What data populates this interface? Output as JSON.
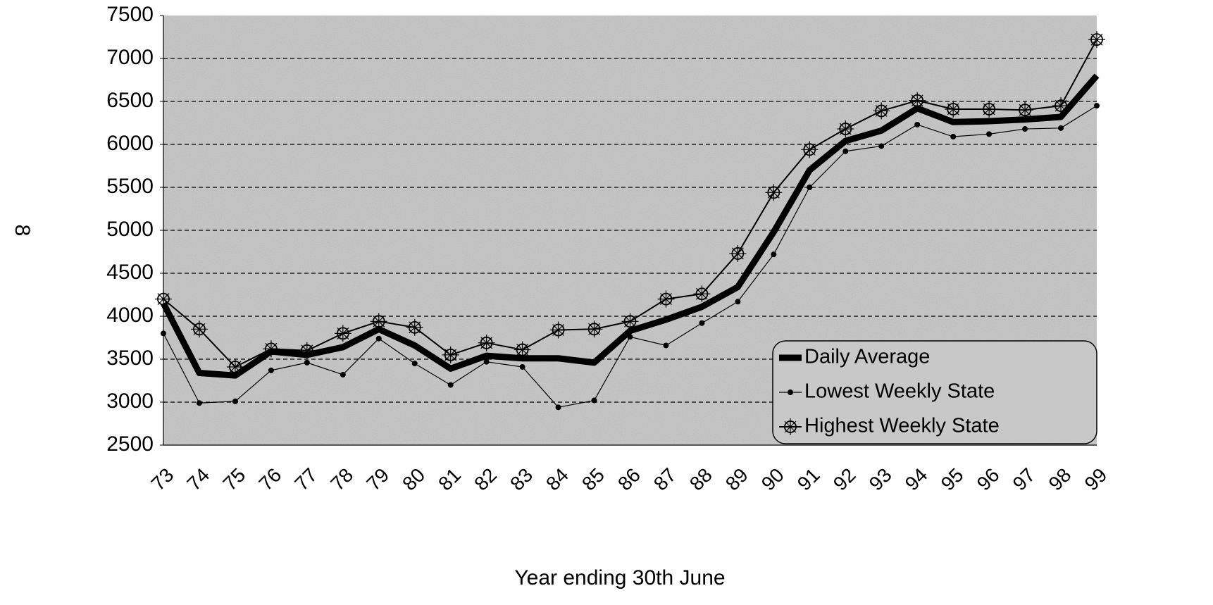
{
  "chart_data": {
    "type": "line",
    "ylabel": "8",
    "xlabel": "Year ending 30th June",
    "categories": [
      "73",
      "74",
      "75",
      "76",
      "77",
      "78",
      "79",
      "80",
      "81",
      "82",
      "83",
      "84",
      "85",
      "86",
      "87",
      "88",
      "89",
      "90",
      "91",
      "92",
      "93",
      "94",
      "95",
      "96",
      "97",
      "98",
      "99"
    ],
    "series": [
      {
        "name": "Daily Average",
        "color": "#000000",
        "values": [
          4150,
          3340,
          3310,
          3590,
          3550,
          3640,
          3850,
          3660,
          3390,
          3540,
          3510,
          3510,
          3460,
          3830,
          3960,
          4110,
          4340,
          4980,
          5700,
          6040,
          6160,
          6420,
          6260,
          6270,
          6290,
          6320,
          6800
        ]
      },
      {
        "name": "Lowest Weekly State",
        "color": "#000000",
        "values": [
          3800,
          2990,
          3010,
          3370,
          3460,
          3320,
          3740,
          3450,
          3200,
          3470,
          3410,
          2940,
          3020,
          3760,
          3660,
          3920,
          4170,
          4720,
          5500,
          5920,
          5980,
          6230,
          6090,
          6120,
          6180,
          6190,
          6450
        ]
      },
      {
        "name": "Highest Weekly State",
        "color": "#000000",
        "values": [
          4200,
          3850,
          3410,
          3620,
          3600,
          3800,
          3940,
          3870,
          3550,
          3690,
          3610,
          3840,
          3850,
          3940,
          4200,
          4260,
          4730,
          5440,
          5940,
          6180,
          6390,
          6510,
          6410,
          6410,
          6400,
          6450,
          7220
        ]
      }
    ],
    "ylim": [
      2500,
      7500
    ],
    "yticks": [
      2500,
      3000,
      3500,
      4000,
      4500,
      5000,
      5500,
      6000,
      6500,
      7000,
      7500
    ],
    "grid": true,
    "legend": "lower right"
  }
}
